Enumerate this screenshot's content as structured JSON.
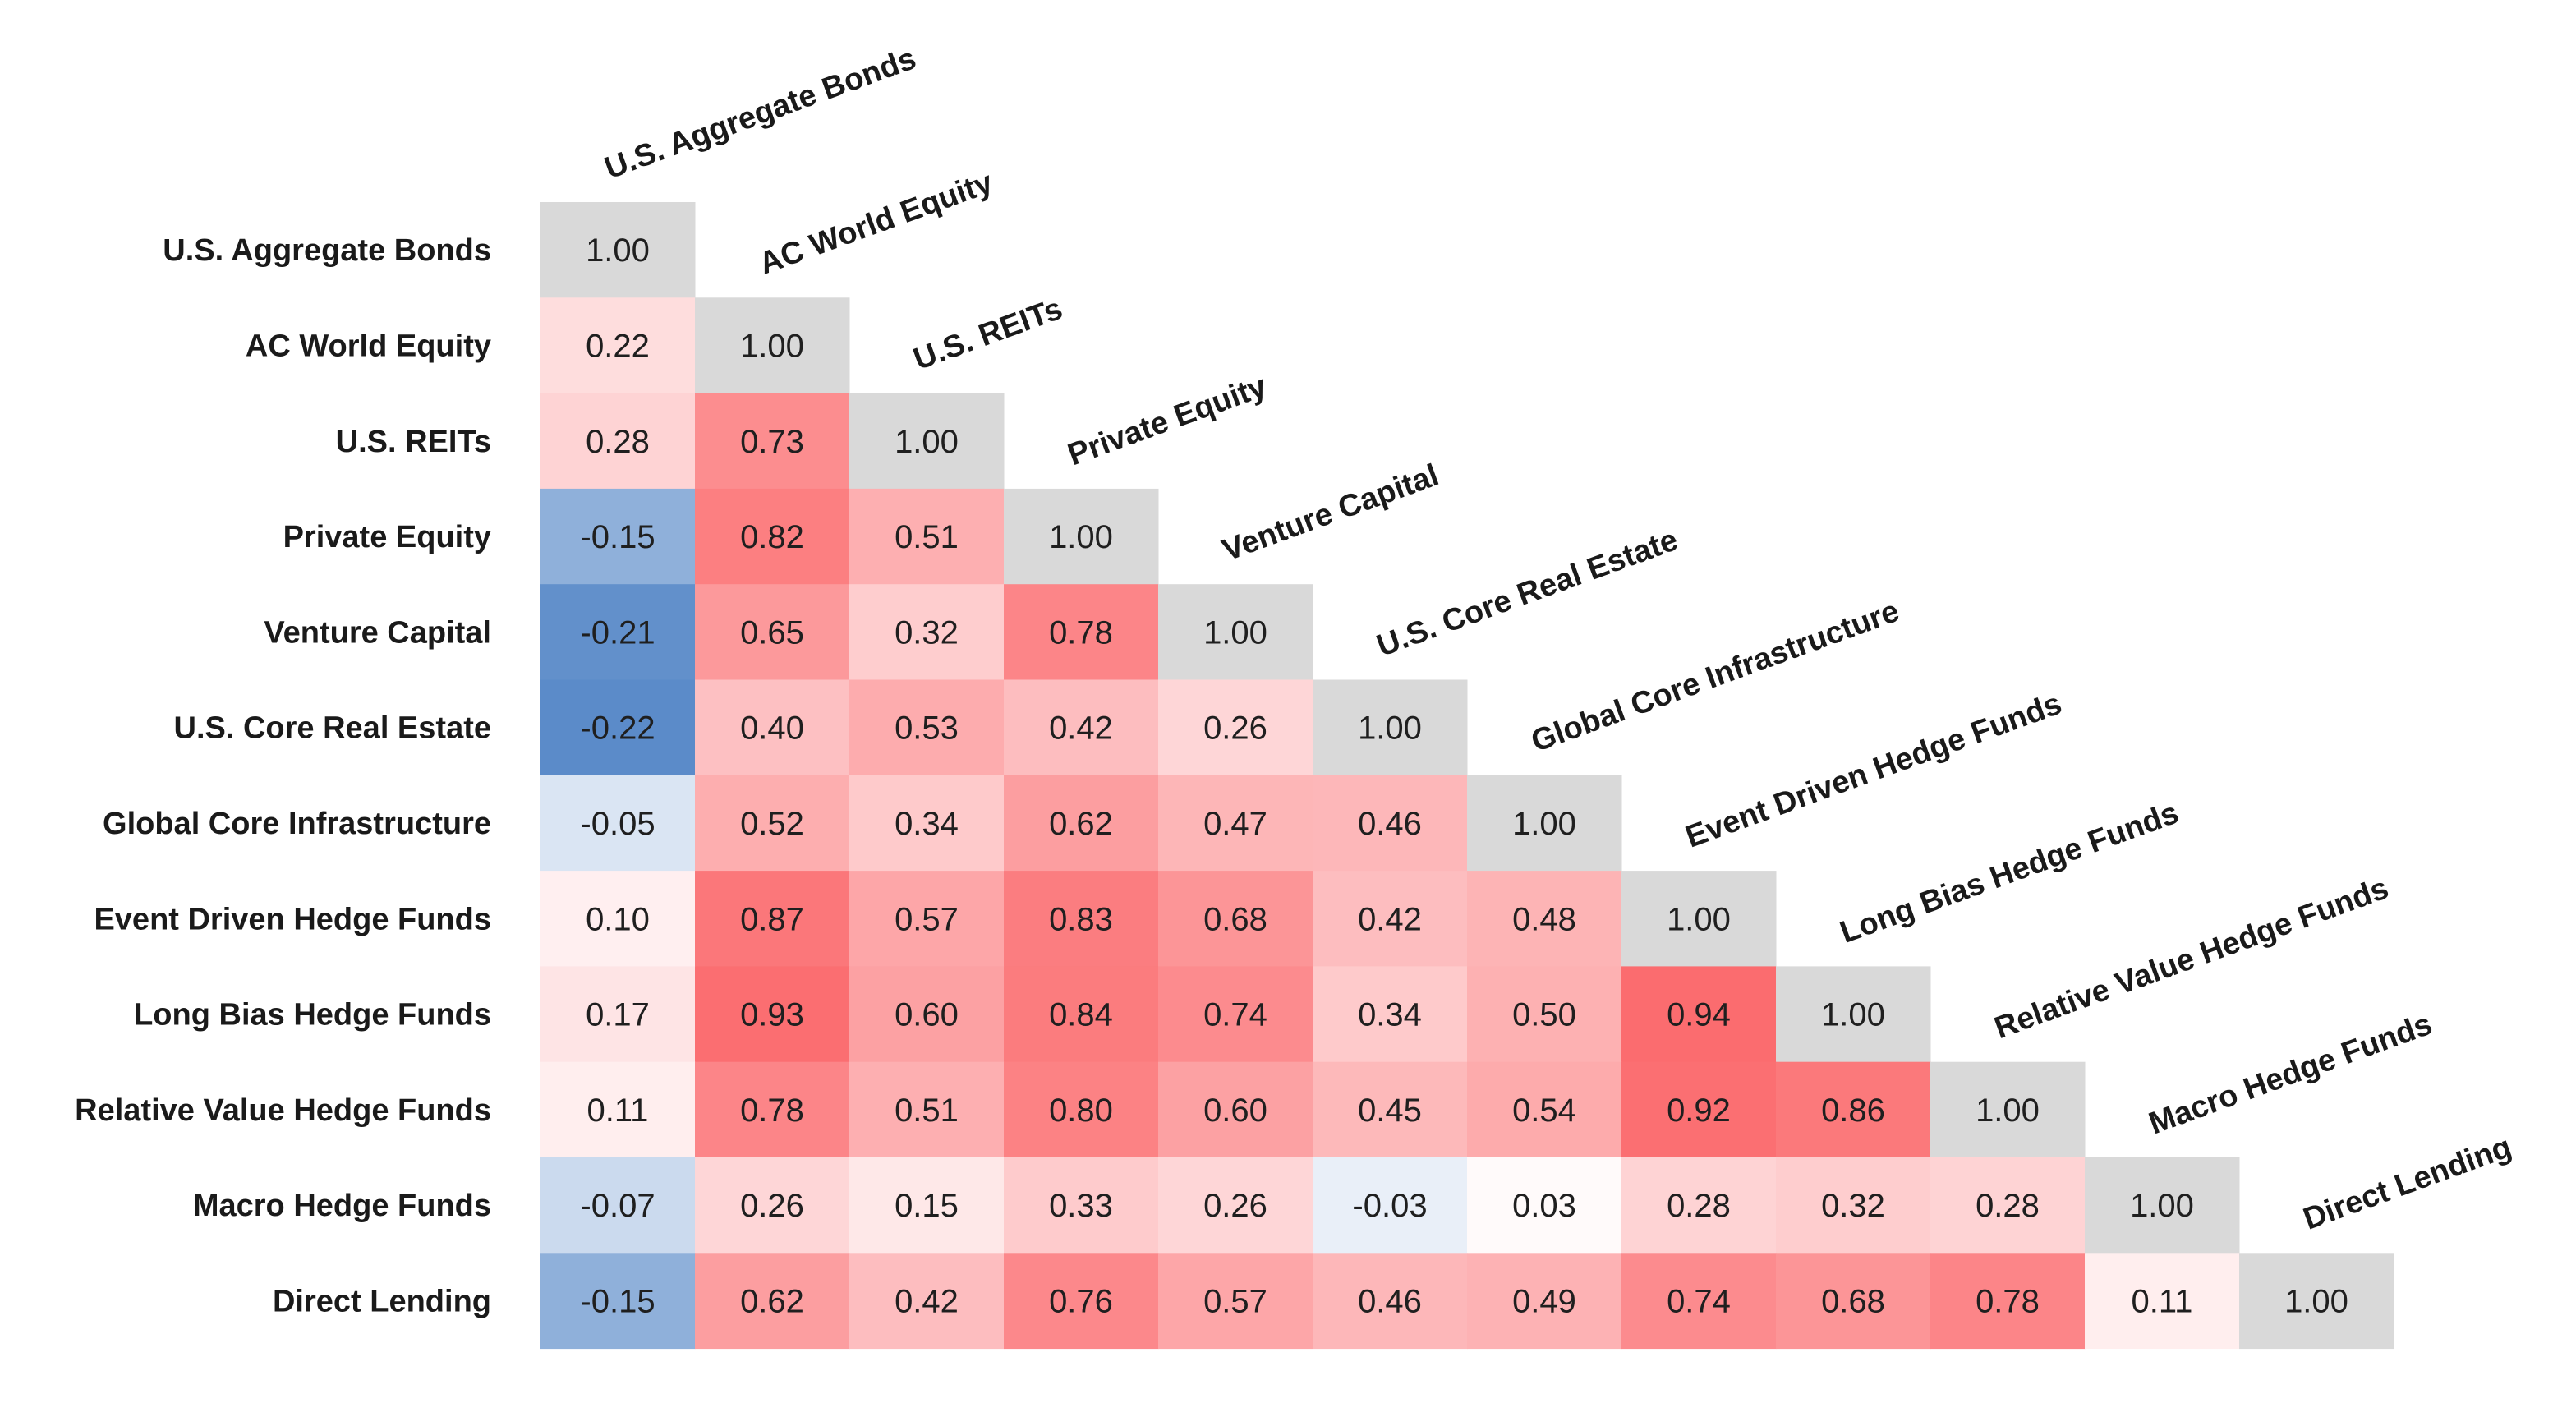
{
  "chart_data": {
    "type": "heatmap",
    "title": "",
    "xlabel": "",
    "ylabel": "",
    "layout": "lower-triangle",
    "labels": [
      "U.S. Aggregate Bonds",
      "AC World Equity",
      "U.S. REITs",
      "Private Equity",
      "Venture Capital",
      "U.S. Core Real Estate",
      "Global Core Infrastructure",
      "Event Driven Hedge Funds",
      "Long Bias Hedge Funds",
      "Relative Value Hedge Funds",
      "Macro Hedge Funds",
      "Direct Lending"
    ],
    "values": [
      [
        1.0
      ],
      [
        0.22,
        1.0
      ],
      [
        0.28,
        0.73,
        1.0
      ],
      [
        -0.15,
        0.82,
        0.51,
        1.0
      ],
      [
        -0.21,
        0.65,
        0.32,
        0.78,
        1.0
      ],
      [
        -0.22,
        0.4,
        0.53,
        0.42,
        0.26,
        1.0
      ],
      [
        -0.05,
        0.52,
        0.34,
        0.62,
        0.47,
        0.46,
        1.0
      ],
      [
        0.1,
        0.87,
        0.57,
        0.83,
        0.68,
        0.42,
        0.48,
        1.0
      ],
      [
        0.17,
        0.93,
        0.6,
        0.84,
        0.74,
        0.34,
        0.5,
        0.94,
        1.0
      ],
      [
        0.11,
        0.78,
        0.51,
        0.8,
        0.6,
        0.45,
        0.54,
        0.92,
        0.86,
        1.0
      ],
      [
        -0.07,
        0.26,
        0.15,
        0.33,
        0.26,
        -0.03,
        0.03,
        0.28,
        0.32,
        0.28,
        1.0
      ],
      [
        -0.15,
        0.62,
        0.42,
        0.76,
        0.57,
        0.46,
        0.49,
        0.74,
        0.68,
        0.78,
        0.11,
        1.0
      ]
    ],
    "color_scale": {
      "negative": "#5b8bc9",
      "neutral": "#ffffff",
      "positive": "#fb6c6f",
      "diagonal": "#d9d9d9",
      "min": -0.22,
      "max": 0.94
    }
  }
}
